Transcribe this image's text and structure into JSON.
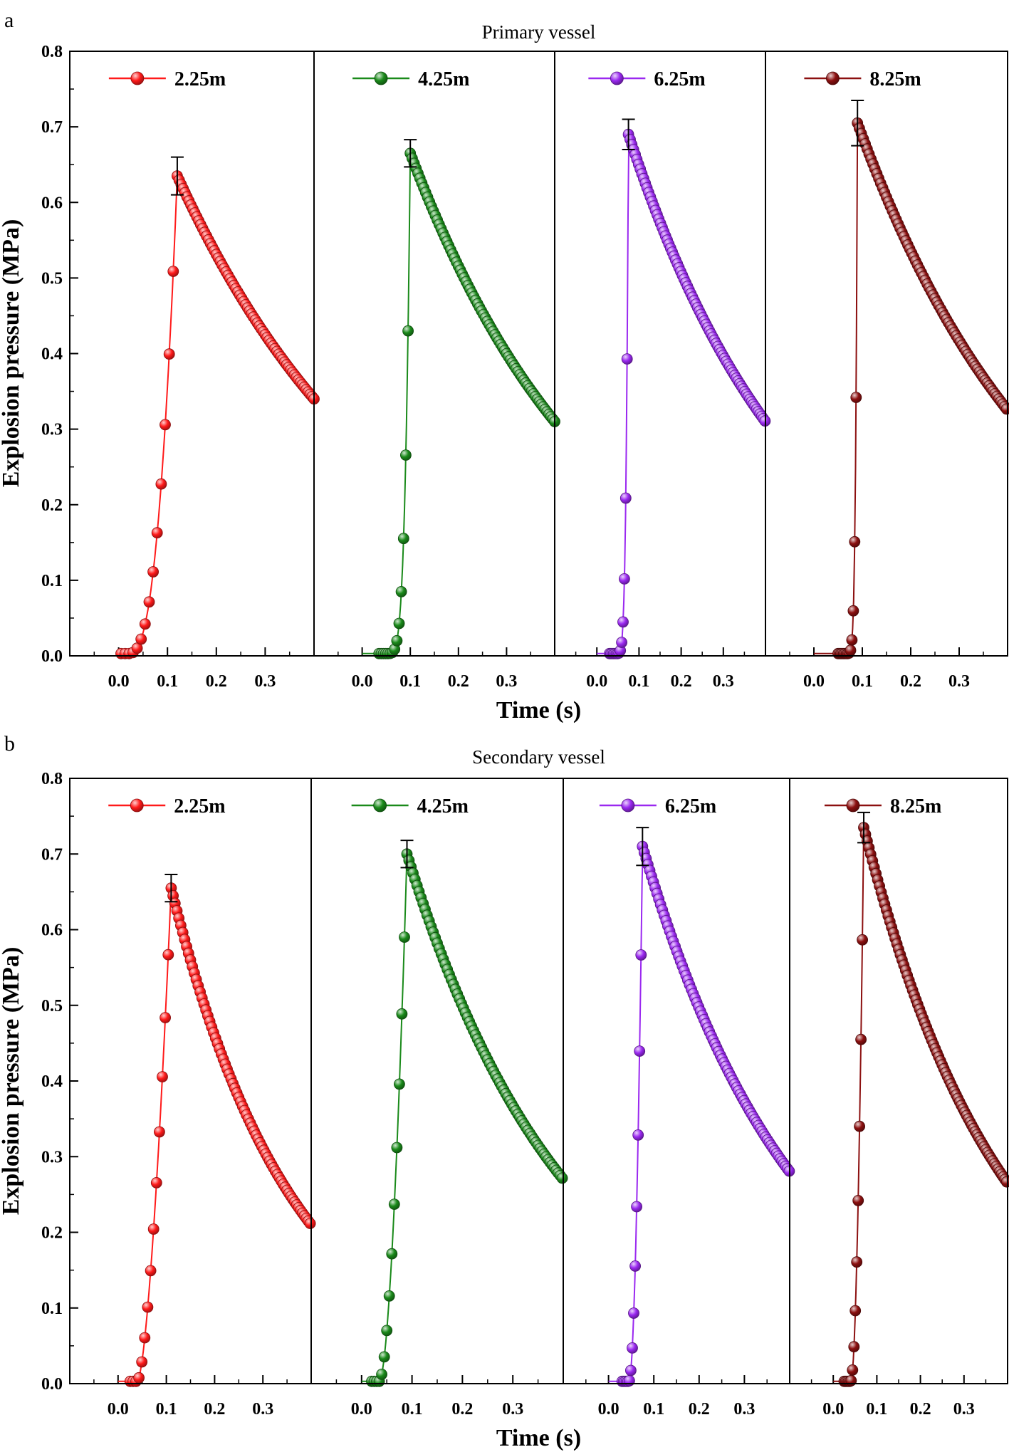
{
  "figure": {
    "panels": [
      {
        "letter": "a",
        "title": "Primary vessel"
      },
      {
        "letter": "b",
        "title": "Secondary vessel"
      }
    ],
    "colors": {
      "2.25m": "#ff1a1a",
      "4.25m": "#1a8a1a",
      "6.25m": "#9a28f0",
      "8.25m": "#8c1010"
    }
  },
  "chart_data": [
    {
      "type": "scatter",
      "title": "Primary vessel",
      "xlabel": "Time (s)",
      "ylabel": "Explosion pressure (MPa)",
      "ylim": [
        0,
        0.8
      ],
      "yticks": [
        "0.0",
        "0.1",
        "0.2",
        "0.3",
        "0.4",
        "0.5",
        "0.6",
        "0.7",
        "0.8"
      ],
      "xticks": [
        "0.0",
        "0.1",
        "0.2",
        "0.3"
      ],
      "xlim": [
        -0.1,
        0.4
      ],
      "series": [
        {
          "name": "2.25m",
          "t_onset": 0.02,
          "t_peak": 0.12,
          "peak": 0.635,
          "end_value": 0.34,
          "error": 0.025,
          "rise_shape": 2.6
        },
        {
          "name": "4.25m",
          "t_onset": 0.05,
          "t_peak": 0.1,
          "peak": 0.665,
          "end_value": 0.31,
          "error": 0.018,
          "rise_shape": 4.5
        },
        {
          "name": "6.25m",
          "t_onset": 0.045,
          "t_peak": 0.075,
          "peak": 0.69,
          "end_value": 0.31,
          "error": 0.02,
          "rise_shape": 5.0
        },
        {
          "name": "8.25m",
          "t_onset": 0.065,
          "t_peak": 0.09,
          "peak": 0.705,
          "end_value": 0.325,
          "error": 0.03,
          "rise_shape": 6.0
        }
      ]
    },
    {
      "type": "scatter",
      "title": "Secondary vessel",
      "xlabel": "Time (s)",
      "ylabel": "Explosion pressure (MPa)",
      "ylim": [
        0,
        0.8
      ],
      "yticks": [
        "0.0",
        "0.1",
        "0.2",
        "0.3",
        "0.4",
        "0.5",
        "0.6",
        "0.7",
        "0.8"
      ],
      "xticks": [
        "0.0",
        "0.1",
        "0.2",
        "0.3"
      ],
      "xlim": [
        -0.1,
        0.4
      ],
      "series": [
        {
          "name": "2.25m",
          "t_onset": 0.04,
          "t_peak": 0.11,
          "peak": 0.655,
          "end_value": 0.21,
          "error": 0.018,
          "rise_shape": 1.6
        },
        {
          "name": "4.25m",
          "t_onset": 0.035,
          "t_peak": 0.09,
          "peak": 0.7,
          "end_value": 0.27,
          "error": 0.018,
          "rise_shape": 1.8
        },
        {
          "name": "6.25m",
          "t_onset": 0.045,
          "t_peak": 0.075,
          "peak": 0.71,
          "end_value": 0.28,
          "error": 0.025,
          "rise_shape": 2.0
        },
        {
          "name": "8.25m",
          "t_onset": 0.04,
          "t_peak": 0.07,
          "peak": 0.735,
          "end_value": 0.265,
          "error": 0.02,
          "rise_shape": 2.0
        }
      ]
    }
  ]
}
